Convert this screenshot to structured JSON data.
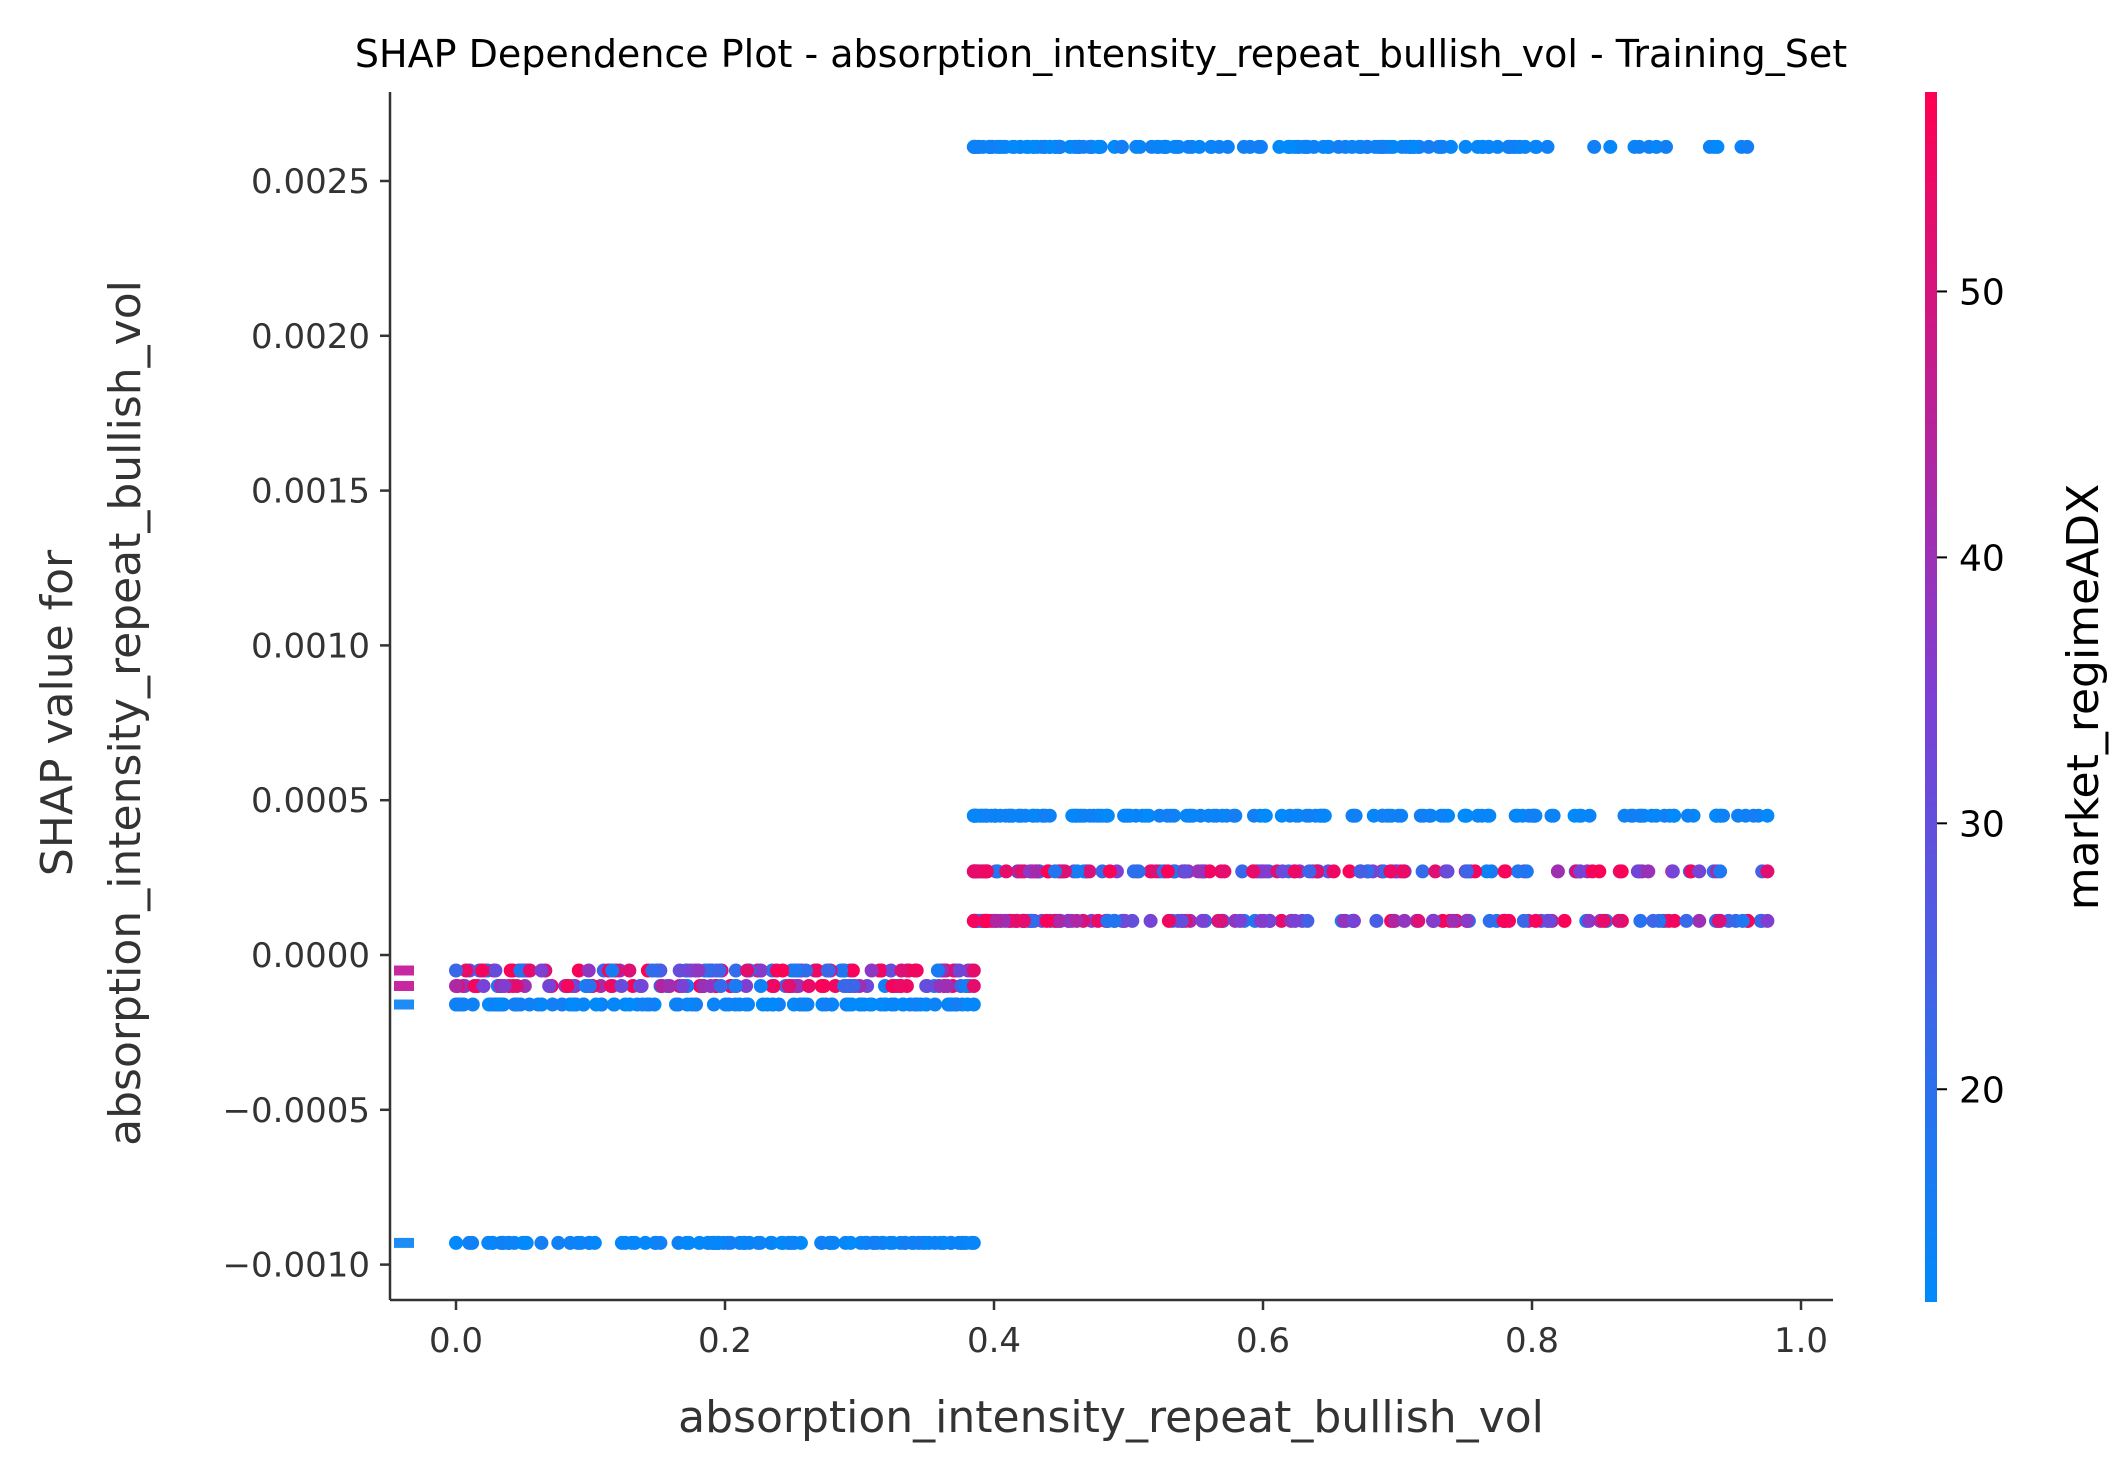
{
  "chart_data": {
    "type": "scatter",
    "title": "SHAP Dependence Plot - absorption_intensity_repeat_bullish_vol - Training_Set",
    "xlabel": "absorption_intensity_repeat_bullish_vol",
    "ylabel_line1": "SHAP value for",
    "ylabel_line2": "absorption_intensity_repeat_bullish_vol",
    "xlim": [
      -0.048,
      1.025
    ],
    "ylim": [
      -0.00111,
      0.00279
    ],
    "xticks": [
      0.0,
      0.2,
      0.4,
      0.6,
      0.8,
      1.0
    ],
    "xtick_labels": [
      "0.0",
      "0.2",
      "0.4",
      "0.6",
      "0.8",
      "1.0"
    ],
    "yticks": [
      -0.001,
      -0.0005,
      0.0,
      0.0005,
      0.001,
      0.0015,
      0.002,
      0.0025
    ],
    "ytick_labels": [
      "−0.0010",
      "−0.0005",
      "0.0000",
      "0.0005",
      "0.0010",
      "0.0015",
      "0.0020",
      "0.0025"
    ],
    "colorbar": {
      "label": "market_regimeADX",
      "range": [
        12,
        57.5
      ],
      "ticks": [
        20,
        30,
        40,
        50
      ],
      "tick_labels": [
        "20",
        "30",
        "40",
        "50"
      ],
      "color_low": "#008afb",
      "color_mid": "#7d3fd4",
      "color_high": "#ff0052"
    },
    "bands": [
      {
        "y": 0.00261,
        "x_start": 0.385,
        "x_end": 0.96,
        "adx_mix": "low"
      },
      {
        "y": 0.00045,
        "x_start": 0.385,
        "x_end": 0.975,
        "adx_mix": "low"
      },
      {
        "y": 0.00027,
        "x_start": 0.385,
        "x_end": 0.975,
        "adx_mix": "mixed"
      },
      {
        "y": 0.00011,
        "x_start": 0.385,
        "x_end": 0.975,
        "adx_mix": "mixed"
      },
      {
        "y": -5e-05,
        "x_start": 0.0,
        "x_end": 0.385,
        "adx_mix": "mixed"
      },
      {
        "y": -0.0001,
        "x_start": 0.0,
        "x_end": 0.385,
        "adx_mix": "mixed"
      },
      {
        "y": -0.00016,
        "x_start": 0.0,
        "x_end": 0.385,
        "adx_mix": "low"
      },
      {
        "y": -0.00093,
        "x_start": 0.0,
        "x_end": 0.385,
        "adx_mix": "low"
      }
    ],
    "missing_markers": [
      {
        "y": -5e-05,
        "color": "#c8289f"
      },
      {
        "y": -0.0001,
        "color": "#c8289f"
      },
      {
        "y": -0.00016,
        "color": "#1e8cf5"
      },
      {
        "y": -0.00093,
        "color": "#1e8cf5"
      }
    ]
  }
}
